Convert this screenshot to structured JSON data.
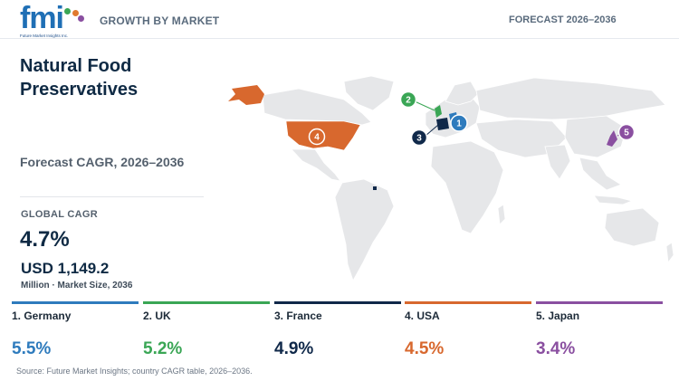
{
  "header": {
    "logo_text": "fmi",
    "logo_tagline": "Future Market Insights Inc.",
    "left_label": "GROWTH BY MARKET",
    "right_label": "FORECAST 2026–2036"
  },
  "title": "Natural Food Preservatives",
  "cagr_label": "Forecast CAGR, 2026–2036",
  "global": {
    "label": "GLOBAL CAGR",
    "value": "4.7%",
    "size_value": "USD 1,149.2",
    "size_label": "Million · Market Size, 2036"
  },
  "map_markers": [
    "1",
    "2",
    "3",
    "4",
    "5"
  ],
  "countries": [
    {
      "name": "1. Germany",
      "value": "5.5%",
      "color": "#2e7bbd"
    },
    {
      "name": "2. UK",
      "value": "5.2%",
      "color": "#3aa655"
    },
    {
      "name": "3. France",
      "value": "4.9%",
      "color": "#10294a"
    },
    {
      "name": "4. USA",
      "value": "4.5%",
      "color": "#d8682e"
    },
    {
      "name": "5. Japan",
      "value": "3.4%",
      "color": "#8a4fa0"
    }
  ],
  "colors": {
    "brand": "#1f6fb5",
    "map_land": "#e6e7e9",
    "map_border": "#ffffff"
  },
  "source": "Source: Future Market Insights; country CAGR table, 2026–2036."
}
